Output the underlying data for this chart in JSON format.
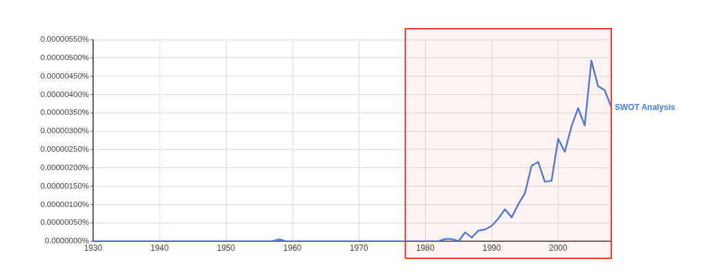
{
  "chart_data": {
    "type": "line",
    "x": [
      1930,
      1957,
      1958,
      1959,
      1982,
      1983,
      1984,
      1985,
      1986,
      1987,
      1988,
      1989,
      1990,
      1991,
      1992,
      1993,
      1994,
      1995,
      1996,
      1997,
      1998,
      1999,
      2000,
      2001,
      2002,
      2003,
      2004,
      2005,
      2006,
      2007,
      2008
    ],
    "series": [
      {
        "name": "SWOT Analysis",
        "color": "#4a7fe0",
        "values": [
          0,
          0,
          5e-08,
          0,
          0,
          6e-08,
          6e-08,
          0,
          2.4e-07,
          1e-07,
          2.9e-07,
          3.2e-07,
          4.2e-07,
          6.2e-07,
          8.7e-07,
          6.5e-07,
          1.01e-06,
          1.31e-06,
          2.06e-06,
          2.16e-06,
          1.62e-06,
          1.65e-06,
          2.79e-06,
          2.44e-06,
          3.13e-06,
          3.63e-06,
          3.16e-06,
          4.93e-06,
          4.23e-06,
          4.12e-06,
          3.66e-06
        ]
      }
    ],
    "xlim": [
      1930,
      2008
    ],
    "xticks": [
      1930,
      1940,
      1950,
      1960,
      1970,
      1980,
      1990,
      2000
    ],
    "ylim": [
      0,
      5.5e-06
    ],
    "yticks": [
      {
        "value": 0,
        "label": "0.0000000%"
      },
      {
        "value": 5e-07,
        "label": "0.00000050%"
      },
      {
        "value": 1e-06,
        "label": "0.00000100%"
      },
      {
        "value": 1.5e-06,
        "label": "0.00000150%"
      },
      {
        "value": 2e-06,
        "label": "0.00000200%"
      },
      {
        "value": 2.5e-06,
        "label": "0.00000250%"
      },
      {
        "value": 3e-06,
        "label": "0.00000300%"
      },
      {
        "value": 3.5e-06,
        "label": "0.00000350%"
      },
      {
        "value": 4e-06,
        "label": "0.00000400%"
      },
      {
        "value": 4.5e-06,
        "label": "0.00000450%"
      },
      {
        "value": 5e-06,
        "label": "0.00000500%"
      },
      {
        "value": 5.5e-06,
        "label": "0.00000550%"
      }
    ],
    "bands": [
      {
        "axis": "x",
        "from": 1977,
        "to": 2008,
        "color": "#e8392b"
      }
    ],
    "grid": true,
    "legend": false,
    "marker": "none",
    "line_style": "solid"
  }
}
